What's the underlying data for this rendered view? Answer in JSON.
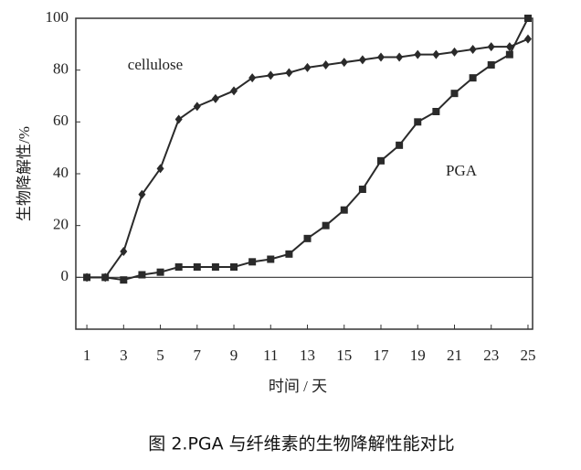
{
  "chart_data": {
    "type": "line",
    "caption": "图 2.PGA 与纤维素的生物降解性能对比",
    "xlabel": "时间 / 天",
    "ylabel": "生物降解性/%",
    "x": [
      1,
      2,
      3,
      4,
      5,
      6,
      7,
      8,
      9,
      10,
      11,
      12,
      13,
      14,
      15,
      16,
      17,
      18,
      19,
      20,
      21,
      22,
      23,
      24,
      25
    ],
    "series": [
      {
        "name": "cellulose",
        "color": "#2a2a2a",
        "marker": "diamond",
        "values": [
          0,
          0,
          10,
          32,
          42,
          61,
          66,
          69,
          72,
          77,
          78,
          79,
          81,
          82,
          83,
          84,
          85,
          85,
          86,
          86,
          87,
          88,
          89,
          89,
          92
        ]
      },
      {
        "name": "PGA",
        "color": "#2a2a2a",
        "marker": "square",
        "values": [
          0,
          0,
          -1,
          1,
          2,
          4,
          4,
          4,
          4,
          6,
          7,
          9,
          15,
          20,
          26,
          34,
          45,
          51,
          60,
          64,
          71,
          77,
          82,
          86,
          100
        ]
      }
    ],
    "xlim": [
      0.4,
      25.25
    ],
    "ylim": [
      -20,
      100
    ],
    "xticks": [
      1,
      3,
      5,
      7,
      9,
      11,
      13,
      15,
      17,
      19,
      21,
      23,
      25
    ],
    "yticks": [
      0,
      20,
      40,
      60,
      80,
      100
    ],
    "zero_line": true
  }
}
